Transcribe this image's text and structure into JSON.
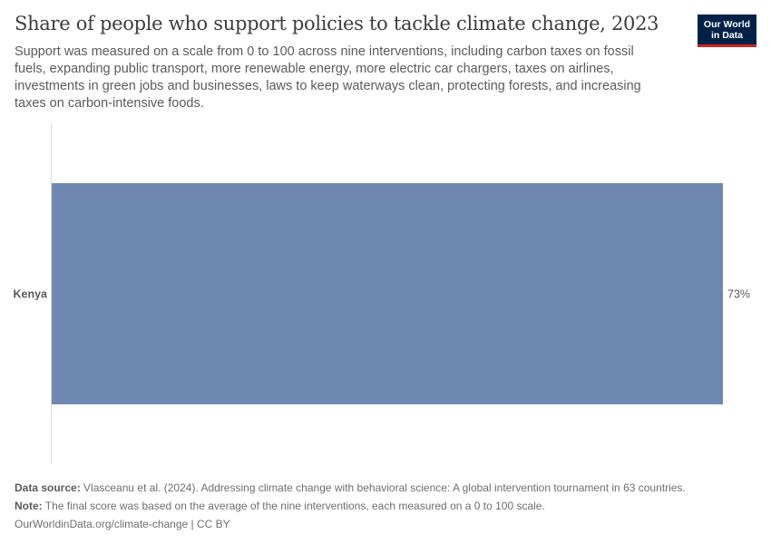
{
  "header": {
    "title": "Share of people who support policies to tackle climate change, 2023",
    "subtitle": "Support was measured on a scale from 0 to 100 across nine interventions, including carbon taxes on fossil fuels, expanding public transport, more renewable energy, more electric car chargers, taxes on airlines, investments in green jobs and businesses, laws to keep waterways clean, protecting forests, and increasing taxes on carbon-intensive foods."
  },
  "logo": {
    "line1": "Our World",
    "line2": "in Data"
  },
  "chart_data": {
    "type": "bar",
    "orientation": "horizontal",
    "categories": [
      "Kenya"
    ],
    "values": [
      73
    ],
    "value_labels": [
      "73%"
    ],
    "title": "Share of people who support policies to tackle climate change, 2023",
    "xlabel": "",
    "ylabel": "",
    "xlim": [
      0,
      73
    ],
    "grid": false,
    "bar_color": "#6f88b2"
  },
  "footer": {
    "source_label": "Data source:",
    "source_text": " Vlasceanu et al. (2024). Addressing climate change with behavioral science: A global intervention tournament in 63 countries.",
    "note_label": "Note:",
    "note_text": " The final score was based on the average of the nine interventions, each measured on a 0 to 100 scale.",
    "url": "OurWorldinData.org/climate-change | CC BY"
  }
}
